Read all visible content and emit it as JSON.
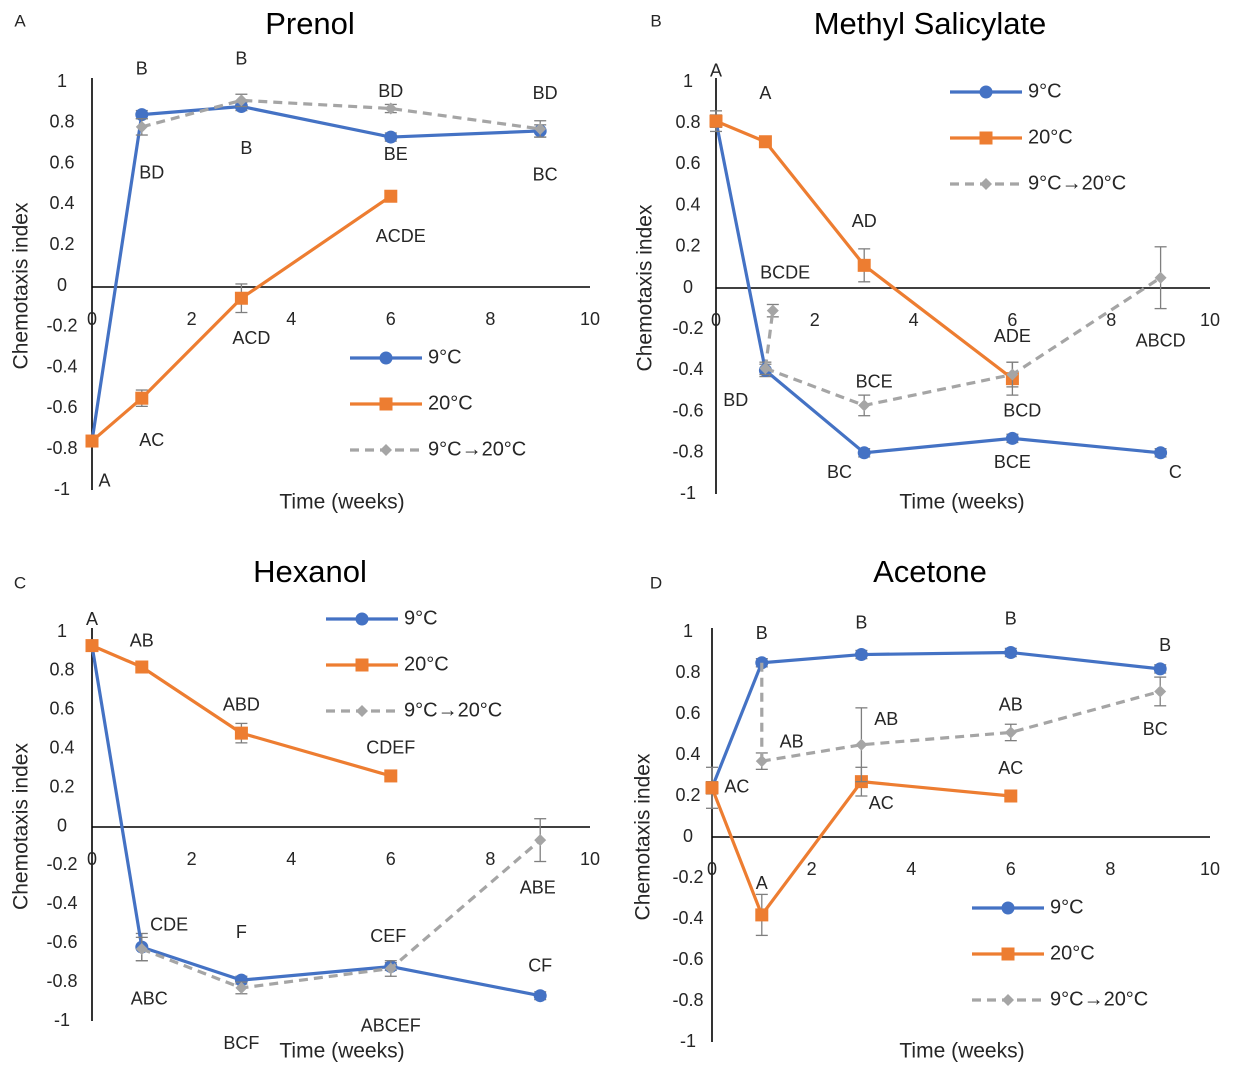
{
  "colors": {
    "s9": "#4472C4",
    "s20": "#ED7D31",
    "sShift": "#A5A5A5",
    "axis": "#000000",
    "text": "#262626"
  },
  "chart_data": [
    {
      "panel": "A",
      "type": "line",
      "title": "Prenol",
      "xlabel": "Time (weeks)",
      "ylabel": "Chemotaxis index",
      "xlim": [
        0,
        10
      ],
      "ylim": [
        -1,
        1
      ],
      "xticks": [
        0,
        2,
        4,
        6,
        8,
        10
      ],
      "yticks": [
        -1,
        -0.8,
        -0.6,
        -0.4,
        -0.2,
        0,
        0.2,
        0.4,
        0.6,
        0.8,
        1
      ],
      "legend": "bottom-right",
      "series": [
        {
          "name": "9°C",
          "x": [
            0,
            1,
            3,
            6,
            9
          ],
          "y": [
            -0.76,
            0.84,
            0.88,
            0.73,
            0.76
          ],
          "err": [
            0.02,
            0.02,
            0.02,
            0.02,
            0.03
          ]
        },
        {
          "name": "20°C",
          "x": [
            0,
            1,
            3,
            6
          ],
          "y": [
            -0.76,
            -0.55,
            -0.06,
            0.44
          ],
          "err": [
            0.02,
            0.04,
            0.07,
            0.02
          ]
        },
        {
          "name": "9°C→20°C",
          "x": [
            1,
            3,
            6,
            9
          ],
          "y": [
            0.78,
            0.91,
            0.87,
            0.77
          ],
          "err": [
            0.04,
            0.03,
            0.02,
            0.04
          ]
        }
      ],
      "annotations": [
        {
          "text": "A",
          "x": 0.25,
          "y": -0.96
        },
        {
          "text": "B",
          "x": 1,
          "y": 1.06
        },
        {
          "text": "BD",
          "x": 1.2,
          "y": 0.55
        },
        {
          "text": "B",
          "x": 3,
          "y": 1.11
        },
        {
          "text": "B",
          "x": 3.1,
          "y": 0.67
        },
        {
          "text": "BD",
          "x": 6,
          "y": 0.95
        },
        {
          "text": "BE",
          "x": 6.1,
          "y": 0.64
        },
        {
          "text": "BD",
          "x": 9.1,
          "y": 0.94
        },
        {
          "text": "BC",
          "x": 9.1,
          "y": 0.54
        },
        {
          "text": "ACDE",
          "x": 6.2,
          "y": 0.24
        },
        {
          "text": "ACD",
          "x": 3.2,
          "y": -0.26
        },
        {
          "text": "AC",
          "x": 1.2,
          "y": -0.76
        }
      ]
    },
    {
      "panel": "B",
      "type": "line",
      "title": "Methyl Salicylate",
      "xlabel": "Time (weeks)",
      "ylabel": "Chemotaxis index",
      "xlim": [
        0,
        10
      ],
      "ylim": [
        -1,
        1
      ],
      "xticks": [
        0,
        2,
        4,
        6,
        8,
        10
      ],
      "yticks": [
        -1,
        -0.8,
        -0.6,
        -0.4,
        -0.2,
        0,
        0.2,
        0.4,
        0.6,
        0.8,
        1
      ],
      "legend": "top-right",
      "series": [
        {
          "name": "9°C",
          "x": [
            0,
            1,
            3,
            6,
            9
          ],
          "y": [
            0.81,
            -0.4,
            -0.8,
            -0.73,
            -0.8
          ],
          "err": [
            0.03,
            0.03,
            0.02,
            0.02,
            0.02
          ]
        },
        {
          "name": "20°C",
          "x": [
            0,
            1,
            3,
            6
          ],
          "y": [
            0.81,
            0.71,
            0.11,
            -0.44
          ],
          "err": [
            0.05,
            0.02,
            0.08,
            0.08
          ]
        },
        {
          "name": "9°C→20°C",
          "x": [
            1,
            3,
            6,
            9
          ],
          "y": [
            -0.39,
            -0.57,
            -0.42,
            0.05
          ],
          "err": [
            0.03,
            0.05,
            0.06,
            0.15
          ]
        },
        {
          "name": "",
          "x": [
            1,
            1.15
          ],
          "y": [
            -0.39,
            -0.11
          ],
          "err": [
            0,
            0.03
          ]
        }
      ],
      "annotations": [
        {
          "text": "A",
          "x": 0,
          "y": 1.05
        },
        {
          "text": "A",
          "x": 1,
          "y": 0.94
        },
        {
          "text": "BD",
          "x": 0.4,
          "y": -0.55
        },
        {
          "text": "BCDE",
          "x": 1.4,
          "y": 0.07
        },
        {
          "text": "AD",
          "x": 3,
          "y": 0.32
        },
        {
          "text": "BCE",
          "x": 3.2,
          "y": -0.46
        },
        {
          "text": "BC",
          "x": 2.5,
          "y": -0.9
        },
        {
          "text": "ADE",
          "x": 6,
          "y": -0.24
        },
        {
          "text": "BCD",
          "x": 6.2,
          "y": -0.6
        },
        {
          "text": "BCE",
          "x": 6,
          "y": -0.85
        },
        {
          "text": "ABCD",
          "x": 9,
          "y": -0.26
        },
        {
          "text": "C",
          "x": 9.3,
          "y": -0.9
        }
      ]
    },
    {
      "panel": "C",
      "type": "line",
      "title": "Hexanol",
      "xlabel": "Time (weeks)",
      "ylabel": "Chemotaxis index",
      "xlim": [
        0,
        10
      ],
      "ylim": [
        -1,
        1
      ],
      "xticks": [
        0,
        2,
        4,
        6,
        8,
        10
      ],
      "yticks": [
        -1,
        -0.8,
        -0.6,
        -0.4,
        -0.2,
        0,
        0.2,
        0.4,
        0.6,
        0.8,
        1
      ],
      "legend": "top-right",
      "series": [
        {
          "name": "9°C",
          "x": [
            0,
            1,
            3,
            6,
            9
          ],
          "y": [
            0.93,
            -0.62,
            -0.79,
            -0.72,
            -0.87
          ],
          "err": [
            0.02,
            0.07,
            0.02,
            0.02,
            0.02
          ]
        },
        {
          "name": "20°C",
          "x": [
            0,
            1,
            3,
            6
          ],
          "y": [
            0.93,
            0.82,
            0.48,
            0.26
          ],
          "err": [
            0.02,
            0.02,
            0.05,
            0.02
          ]
        },
        {
          "name": "9°C→20°C",
          "x": [
            1,
            3,
            6,
            9
          ],
          "y": [
            -0.63,
            -0.83,
            -0.73,
            -0.07
          ],
          "err": [
            0.06,
            0.03,
            0.04,
            0.11
          ]
        }
      ],
      "annotations": [
        {
          "text": "A",
          "x": 0,
          "y": 1.06
        },
        {
          "text": "AB",
          "x": 1,
          "y": 0.95
        },
        {
          "text": "ABD",
          "x": 3,
          "y": 0.62
        },
        {
          "text": "CDEF",
          "x": 6,
          "y": 0.4
        },
        {
          "text": "CDE",
          "x": 1.55,
          "y": -0.51
        },
        {
          "text": "ABC",
          "x": 1.15,
          "y": -0.89
        },
        {
          "text": "F",
          "x": 3,
          "y": -0.55
        },
        {
          "text": "BCF",
          "x": 3,
          "y": -1.12
        },
        {
          "text": "CEF",
          "x": 5.95,
          "y": -0.57
        },
        {
          "text": "ABCEF",
          "x": 6,
          "y": -1.03
        },
        {
          "text": "ABE",
          "x": 8.95,
          "y": -0.32
        },
        {
          "text": "CF",
          "x": 9,
          "y": -0.72
        }
      ]
    },
    {
      "panel": "D",
      "type": "line",
      "title": "Acetone",
      "xlabel": "Time (weeks)",
      "ylabel": "Chemotaxis index",
      "xlim": [
        0,
        10
      ],
      "ylim": [
        -1,
        1
      ],
      "xticks": [
        0,
        2,
        4,
        6,
        8,
        10
      ],
      "yticks": [
        -1,
        -0.8,
        -0.6,
        -0.4,
        -0.2,
        0,
        0.2,
        0.4,
        0.6,
        0.8,
        1
      ],
      "legend": "bottom-right",
      "series": [
        {
          "name": "9°C",
          "x": [
            0,
            1,
            3,
            6,
            9
          ],
          "y": [
            0.24,
            0.85,
            0.89,
            0.9,
            0.82
          ],
          "err": [
            0.1,
            0.02,
            0.02,
            0.02,
            0.02
          ]
        },
        {
          "name": "20°C",
          "x": [
            0,
            1,
            3,
            6
          ],
          "y": [
            0.24,
            -0.38,
            0.27,
            0.2
          ],
          "err": [
            0.03,
            0.1,
            0.07,
            0.02
          ]
        },
        {
          "name": "9°C→20°C",
          "x": [
            1,
            3,
            6,
            9
          ],
          "y": [
            0.37,
            0.45,
            0.51,
            0.71
          ],
          "err": [
            0.04,
            0.18,
            0.04,
            0.07
          ]
        },
        {
          "name": "",
          "x": [
            1,
            1
          ],
          "y": [
            0.85,
            0.37
          ],
          "err": [
            0,
            0
          ]
        }
      ],
      "annotations": [
        {
          "text": "AC",
          "x": 0.5,
          "y": 0.24
        },
        {
          "text": "A",
          "x": 1,
          "y": -0.23
        },
        {
          "text": "B",
          "x": 1,
          "y": 0.99
        },
        {
          "text": "AB",
          "x": 1.6,
          "y": 0.46
        },
        {
          "text": "B",
          "x": 3,
          "y": 1.04
        },
        {
          "text": "AB",
          "x": 3.5,
          "y": 0.57
        },
        {
          "text": "AC",
          "x": 3.4,
          "y": 0.16
        },
        {
          "text": "B",
          "x": 6,
          "y": 1.06
        },
        {
          "text": "AB",
          "x": 6,
          "y": 0.64
        },
        {
          "text": "AC",
          "x": 6,
          "y": 0.33
        },
        {
          "text": "B",
          "x": 9.1,
          "y": 0.93
        },
        {
          "text": "BC",
          "x": 8.9,
          "y": 0.52
        }
      ]
    }
  ]
}
